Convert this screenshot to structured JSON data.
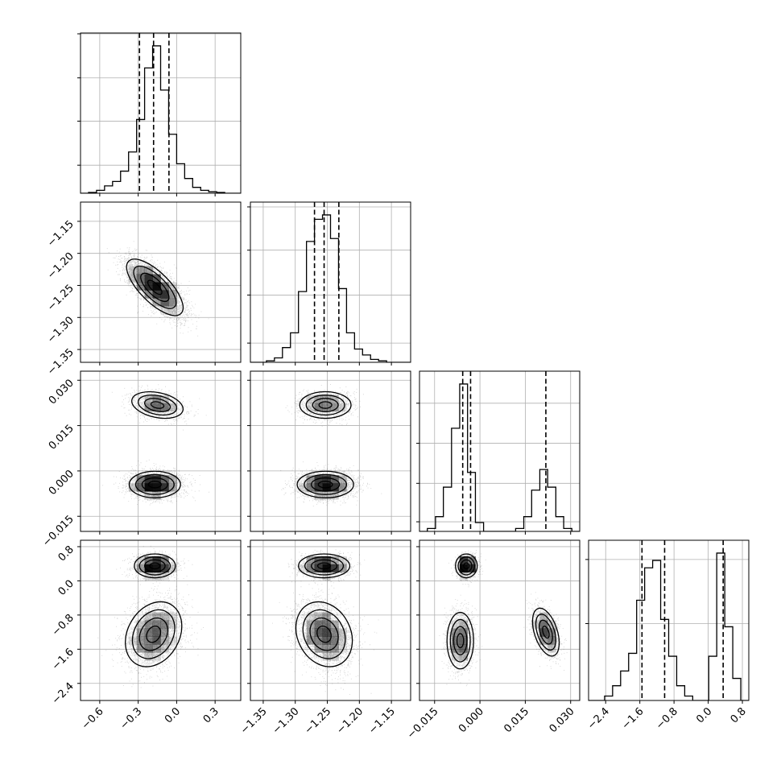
{
  "chart_data": {
    "type": "corner",
    "title": "",
    "grid": true,
    "colors": {
      "line": "#000000",
      "grid": "#b0b0b0",
      "density": "#000000"
    },
    "parameters": [
      {
        "range": [
          -0.75,
          0.5
        ],
        "ticks": [
          -0.6,
          -0.3,
          0.0,
          0.3
        ],
        "tick_labels": [
          "−0.6",
          "−0.3",
          "0.0",
          "0.3"
        ],
        "quantiles": [
          -0.29,
          -0.18,
          -0.06
        ],
        "modes": [
          {
            "mean": -0.17,
            "sd": 0.11,
            "weight": 1.0
          }
        ],
        "histogram": {
          "bin_edges": [
            -0.75,
            -0.6875,
            -0.625,
            -0.5625,
            -0.5,
            -0.4375,
            -0.375,
            -0.3125,
            -0.25,
            -0.1875,
            -0.125,
            -0.0625,
            0.0,
            0.0625,
            0.125,
            0.1875,
            0.25,
            0.3125,
            0.375,
            0.4375,
            0.5
          ],
          "counts": [
            0.0,
            0.005,
            0.02,
            0.05,
            0.08,
            0.15,
            0.28,
            0.5,
            0.85,
            1.0,
            0.7,
            0.4,
            0.2,
            0.1,
            0.04,
            0.02,
            0.01,
            0.005,
            0.0,
            0.0
          ],
          "ylim": [
            0,
            1.0
          ],
          "y_gridlines": [
            0.175,
            0.45,
            0.72,
            0.995
          ]
        }
      },
      {
        "range": [
          -1.37,
          -1.12
        ],
        "ticks": [
          -1.35,
          -1.3,
          -1.25,
          -1.2,
          -1.15
        ],
        "tick_labels": [
          "−1.35",
          "−1.30",
          "−1.25",
          "−1.20",
          "−1.15"
        ],
        "quantiles": [
          -1.27,
          -1.255,
          -1.232
        ],
        "modes": [
          {
            "mean": -1.253,
            "sd": 0.022,
            "weight": 1.0
          }
        ],
        "histogram": {
          "bin_edges": [
            -1.37,
            -1.3575,
            -1.345,
            -1.3325,
            -1.32,
            -1.3075,
            -1.295,
            -1.2825,
            -1.27,
            -1.2575,
            -1.245,
            -1.2325,
            -1.22,
            -1.2075,
            -1.195,
            -1.1825,
            -1.17,
            -1.1575,
            -1.145,
            -1.1325,
            -1.12
          ],
          "counts": [
            0.0,
            0.0,
            0.01,
            0.03,
            0.1,
            0.2,
            0.48,
            0.82,
            0.97,
            1.0,
            0.84,
            0.5,
            0.2,
            0.09,
            0.05,
            0.02,
            0.01,
            0.0,
            0.0,
            0.0
          ],
          "ylim": [
            0,
            1.0
          ],
          "y_gridlines": [
            0.12,
            0.42,
            0.7,
            0.97
          ]
        }
      },
      {
        "range": [
          -0.02,
          0.033
        ],
        "ticks": [
          -0.015,
          0.0,
          0.015,
          0.03
        ],
        "tick_labels": [
          "−0.015",
          "0.000",
          "0.015",
          "0.030"
        ],
        "quantiles": [
          -0.0057,
          -0.0031,
          0.0218
        ],
        "modes": [
          {
            "mean": -0.0045,
            "sd": 0.0022,
            "weight": 0.66
          },
          {
            "mean": 0.0218,
            "sd": 0.0022,
            "weight": 0.34
          }
        ],
        "histogram": {
          "bin_edges": [
            -0.02,
            -0.0174,
            -0.0147,
            -0.0121,
            -0.0094,
            -0.0067,
            -0.0041,
            -0.0015,
            0.0012,
            0.0039,
            0.0065,
            0.0092,
            0.0118,
            0.0145,
            0.0171,
            0.0198,
            0.0224,
            0.0251,
            0.0277,
            0.0304,
            0.033
          ],
          "counts": [
            0.0,
            0.02,
            0.1,
            0.3,
            0.7,
            1.0,
            0.4,
            0.06,
            0.0,
            0.0,
            0.0,
            0.0,
            0.02,
            0.1,
            0.28,
            0.42,
            0.3,
            0.1,
            0.02,
            0.0
          ],
          "ylim": [
            0,
            1.0
          ],
          "y_gridlines": [
            0.06,
            0.3,
            0.55,
            0.8
          ]
        }
      },
      {
        "range": [
          -2.8,
          0.95
        ],
        "ticks": [
          -2.4,
          -1.6,
          -0.8,
          0.0,
          0.8
        ],
        "tick_labels": [
          "−2.4",
          "−1.6",
          "−0.8",
          "0.0",
          "0.8"
        ],
        "quantiles": [
          -1.55,
          -1.02,
          0.35
        ],
        "modes": [
          {
            "mean": -1.25,
            "sd": 0.38,
            "weight": 0.66
          },
          {
            "mean": 0.35,
            "sd": 0.17,
            "weight": 0.34
          }
        ],
        "histogram": {
          "bin_edges": [
            -2.8,
            -2.6125,
            -2.425,
            -2.2375,
            -2.05,
            -1.8625,
            -1.675,
            -1.4875,
            -1.3,
            -1.1125,
            -0.925,
            -0.7375,
            -0.55,
            -0.3625,
            -0.175,
            0.0125,
            0.2,
            0.3875,
            0.575,
            0.7625,
            0.95
          ],
          "counts": [
            0.0,
            0.0,
            0.03,
            0.1,
            0.2,
            0.32,
            0.68,
            0.9,
            0.95,
            0.55,
            0.3,
            0.1,
            0.03,
            0.0,
            0.0,
            0.3,
            1.0,
            0.5,
            0.15,
            0.0
          ],
          "ylim": [
            0,
            1.0
          ],
          "y_gridlines": [
            0.48,
            0.88
          ]
        }
      }
    ],
    "pairs": [
      {
        "row": 1,
        "col": 0,
        "components": [
          {
            "mx": -0.17,
            "sx": 0.11,
            "my": -1.253,
            "sy": 0.022,
            "rho": -0.72,
            "weight": 1.0
          }
        ]
      },
      {
        "row": 2,
        "col": 0,
        "components": [
          {
            "mx": -0.17,
            "sx": 0.1,
            "my": -0.0045,
            "sy": 0.0022,
            "rho": 0.0,
            "weight": 0.66
          },
          {
            "mx": -0.15,
            "sx": 0.1,
            "my": 0.0218,
            "sy": 0.0022,
            "rho": -0.3,
            "weight": 0.34
          }
        ]
      },
      {
        "row": 2,
        "col": 1,
        "components": [
          {
            "mx": -1.253,
            "sx": 0.022,
            "my": -0.0045,
            "sy": 0.0022,
            "rho": 0.0,
            "weight": 0.66
          },
          {
            "mx": -1.253,
            "sx": 0.02,
            "my": 0.0218,
            "sy": 0.0022,
            "rho": 0.0,
            "weight": 0.34
          }
        ]
      },
      {
        "row": 3,
        "col": 0,
        "components": [
          {
            "mx": -0.18,
            "sx": 0.11,
            "my": -1.25,
            "sy": 0.38,
            "rho": 0.25,
            "weight": 0.66
          },
          {
            "mx": -0.17,
            "sx": 0.08,
            "my": 0.35,
            "sy": 0.14,
            "rho": 0.0,
            "weight": 0.34
          }
        ]
      },
      {
        "row": 3,
        "col": 1,
        "components": [
          {
            "mx": -1.255,
            "sx": 0.022,
            "my": -1.25,
            "sy": 0.38,
            "rho": -0.2,
            "weight": 0.66
          },
          {
            "mx": -1.255,
            "sx": 0.02,
            "my": 0.35,
            "sy": 0.14,
            "rho": 0.0,
            "weight": 0.34
          }
        ]
      },
      {
        "row": 3,
        "col": 2,
        "components": [
          {
            "mx": -0.0045,
            "sx": 0.0018,
            "my": 0.35,
            "sy": 0.14,
            "rho": 0.0,
            "weight": 0.25
          },
          {
            "mx": -0.0065,
            "sx": 0.0022,
            "my": -1.4,
            "sy": 0.33,
            "rho": 0.0,
            "weight": 0.41
          },
          {
            "mx": 0.0218,
            "sx": 0.0022,
            "my": -1.2,
            "sy": 0.28,
            "rho": -0.45,
            "weight": 0.34
          }
        ]
      }
    ]
  }
}
